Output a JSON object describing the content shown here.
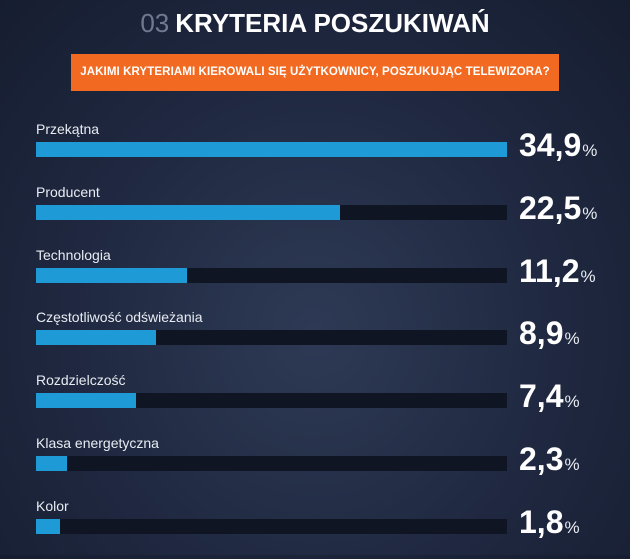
{
  "header": {
    "number": "03",
    "title": "KRYTERIA POSZUKIWAŃ",
    "question": "JAKIMI KRYTERIAMI KIEROWALI SIĘ UŻYTKOWNICY, POSZUKUJĄC TELEWIZORA?"
  },
  "colors": {
    "accent_orange": "#f26a21",
    "bar_fill": "#1e9bd7",
    "bar_track": "#0f1522",
    "background": "#1f2840"
  },
  "chart_data": {
    "type": "bar",
    "orientation": "horizontal",
    "title": "KRYTERIA POSZUKIWAŃ",
    "xlim": [
      0,
      34.9
    ],
    "value_suffix": "%",
    "categories": [
      "Przekątna",
      "Producent",
      "Technologia",
      "Częstotliwość odświeżania",
      "Rozdzielczość",
      "Klasa energetyczna",
      "Kolor"
    ],
    "values": [
      34.9,
      22.5,
      11.2,
      8.9,
      7.4,
      2.3,
      1.8
    ],
    "value_labels": [
      "34,9",
      "22,5",
      "11,2",
      "8,9",
      "7,4",
      "2,3",
      "1,8"
    ],
    "percent_sign": "%"
  }
}
